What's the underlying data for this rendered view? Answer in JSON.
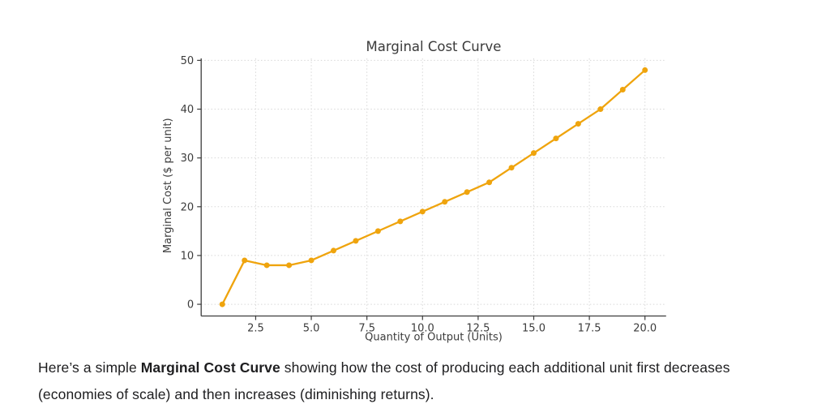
{
  "chart_data": {
    "type": "line",
    "title": "Marginal Cost Curve",
    "xlabel": "Quantity of Output (Units)",
    "ylabel": "Marginal Cost ($ per unit)",
    "series": [
      {
        "name": "Marginal Cost",
        "x": [
          1,
          2,
          3,
          4,
          5,
          6,
          7,
          8,
          9,
          10,
          11,
          12,
          13,
          14,
          15,
          16,
          17,
          18,
          19,
          20
        ],
        "values": [
          0,
          9,
          8,
          8,
          9,
          11,
          13,
          15,
          17,
          19,
          21,
          23,
          25,
          28,
          31,
          34,
          37,
          40,
          44,
          48
        ]
      }
    ],
    "xlim": [
      0.05,
      20.95
    ],
    "ylim": [
      -2.4,
      50.4
    ],
    "xticks": [
      2.5,
      5.0,
      7.5,
      10.0,
      12.5,
      15.0,
      17.5,
      20.0
    ],
    "xtick_labels": [
      "2.5",
      "5.0",
      "7.5",
      "10.0",
      "12.5",
      "15.0",
      "17.5",
      "20.0"
    ],
    "yticks": [
      0,
      10,
      20,
      30,
      40,
      50
    ],
    "ytick_labels": [
      "0",
      "10",
      "20",
      "30",
      "40",
      "50"
    ],
    "grid": true,
    "grid_style": "dotted",
    "legend": "none",
    "marker": "circle"
  },
  "colors": {
    "background": "#FFFFFF",
    "line": "#EFA40D",
    "grid": "#D8D8D8",
    "axis": "#3C3C3C",
    "tick_text": "#3C3C3C",
    "title_text": "#3A3A3A",
    "caption_text": "#1D1D1F"
  },
  "caption": {
    "line1_pre": "Here’s a simple ",
    "line1_bold": "Marginal Cost Curve",
    "line1_post": " showing how the cost of producing each additional unit first decreases",
    "line2": "(economies of scale) and then increases (diminishing returns)."
  }
}
